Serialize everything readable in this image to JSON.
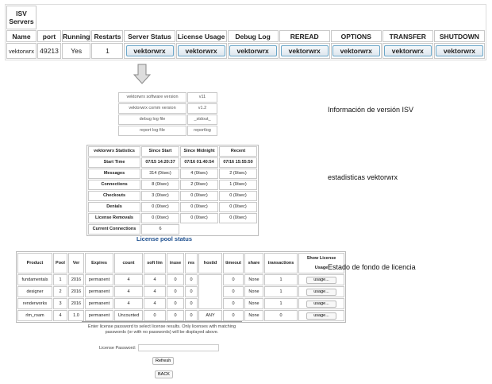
{
  "isv": {
    "title": "ISV Servers",
    "headers": [
      "Name",
      "port",
      "Running",
      "Restarts",
      "Server Status",
      "License Usage",
      "Debug Log",
      "REREAD",
      "OPTIONS",
      "TRANSFER",
      "SHUTDOWN"
    ],
    "row": {
      "name": "vektorwrx",
      "port": "49213",
      "running": "Yes",
      "restarts": "1",
      "button_label": "vektorwrx"
    }
  },
  "arrow_icon": "down-arrow",
  "version": {
    "rows": [
      [
        "vektorwrx software version",
        "v11"
      ],
      [
        "vektorwrx comm version",
        "v1.2"
      ],
      [
        "debug log file",
        "_stdout_"
      ],
      [
        "report log file",
        "reportlog"
      ]
    ]
  },
  "stats": {
    "headers": [
      "vektorwrx Statistics",
      "Since Start",
      "Since Midnight",
      "Recent"
    ],
    "rows": [
      [
        "Start Time",
        "07/15 14:20:37",
        "07/16 01:40:54",
        "07/16 15:55:50"
      ],
      [
        "Messages",
        "314 (0/sec)",
        "4 (0/sec)",
        "2 (0/sec)"
      ],
      [
        "Connections",
        "8 (0/sec)",
        "2 (0/sec)",
        "1 (0/sec)"
      ],
      [
        "Checkouts",
        "3 (0/sec)",
        "0 (0/sec)",
        "0 (0/sec)"
      ],
      [
        "Denials",
        "0 (0/sec)",
        "0 (0/sec)",
        "0 (0/sec)"
      ],
      [
        "License Removals",
        "0 (0/sec)",
        "0 (0/sec)",
        "0 (0/sec)"
      ]
    ],
    "current_label": "Current Connections",
    "current_value": "6"
  },
  "pool": {
    "title": "License pool status",
    "headers": [
      "Product",
      "Pool",
      "Ver",
      "Expires",
      "count",
      "soft lim",
      "inuse",
      "res",
      "hostid",
      "timeout",
      "share",
      "transactions",
      "Show License Usage"
    ],
    "rows": [
      [
        "fundamentals",
        "1",
        "2016",
        "permanent",
        "4",
        "4",
        "0",
        "0",
        "",
        "0",
        "None",
        "1"
      ],
      [
        "designer",
        "2",
        "2016",
        "permanent",
        "4",
        "4",
        "0",
        "0",
        "",
        "0",
        "None",
        "1"
      ],
      [
        "renderworks",
        "3",
        "2016",
        "permanent",
        "4",
        "4",
        "0",
        "0",
        "",
        "0",
        "None",
        "1"
      ],
      [
        "rlm_roam",
        "4",
        "1.0",
        "permanent",
        "Uncounted",
        "0",
        "0",
        "0",
        "ANY",
        "0",
        "None",
        "0"
      ]
    ],
    "usage_label": "usage..."
  },
  "notes": {
    "version": "Información de versión ISV",
    "stats": "estadisticas vektorwrx",
    "pool": "Estado de fondo de licencia"
  },
  "password": {
    "message": "Enter license password to select license results. Only licenses with matching passwords (or with no passwords) will be displayed above.",
    "label": "License Password:",
    "value": "",
    "refresh": "Refresh",
    "back": "BACK"
  }
}
